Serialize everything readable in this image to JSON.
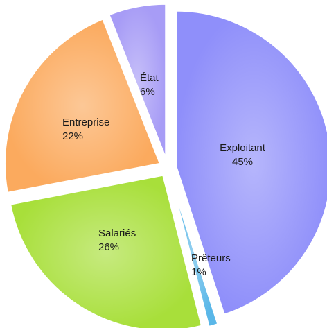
{
  "chart_data": {
    "type": "pie",
    "title": "",
    "slices": [
      {
        "label": "Exploitant",
        "value": 45,
        "value_label": "45%",
        "color": "#8f8ffa"
      },
      {
        "label": "Prêteurs",
        "value": 1,
        "value_label": "1%",
        "color": "#5ab7e8"
      },
      {
        "label": "Salariés",
        "value": 26,
        "value_label": "26%",
        "color": "#a8df3a"
      },
      {
        "label": "Entreprise",
        "value": 22,
        "value_label": "22%",
        "color": "#fbaa5e"
      },
      {
        "label": "État",
        "value": 6,
        "value_label": "6%",
        "color": "#a79cf6"
      }
    ]
  }
}
